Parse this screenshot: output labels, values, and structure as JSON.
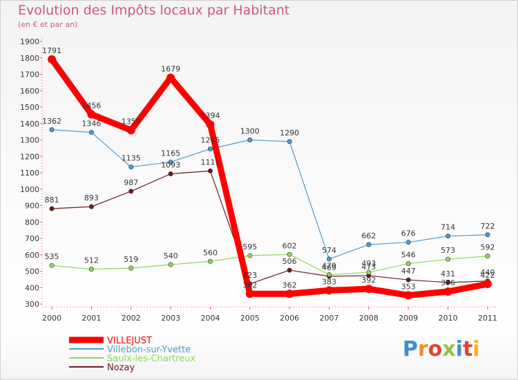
{
  "title": "Evolution des Impôts locaux par Habitant",
  "subtitle": "(en € et par an)",
  "logo": "Proxiti",
  "chart_data": {
    "type": "line",
    "title": "Evolution des Impôts locaux par Habitant",
    "subtitle": "(en € et par an)",
    "xlabel": "",
    "ylabel": "",
    "categories": [
      "2000",
      "2001",
      "2002",
      "2003",
      "2004",
      "2005",
      "2006",
      "2007",
      "2008",
      "2009",
      "2010",
      "2011"
    ],
    "ylim": [
      300,
      1900
    ],
    "yticks": [
      300,
      400,
      500,
      600,
      700,
      800,
      900,
      1000,
      1100,
      1200,
      1300,
      1400,
      1500,
      1600,
      1700,
      1800,
      1900
    ],
    "grid": false,
    "legend_position": "bottom-left",
    "series": [
      {
        "name": "VILLEJUST",
        "color": "#ff0000",
        "values": [
          1791,
          1456,
          1359,
          1679,
          1394,
          362,
          362,
          383,
          392,
          353,
          376,
          422
        ]
      },
      {
        "name": "Villebon-sur-Yvette",
        "color": "#4f9ad0",
        "values": [
          1362,
          1346,
          1135,
          1165,
          1245,
          1300,
          1290,
          574,
          662,
          676,
          714,
          722
        ]
      },
      {
        "name": "Saulx-les-Chartreux",
        "color": "#8dd65d",
        "values": [
          535,
          512,
          519,
          540,
          560,
          595,
          602,
          479,
          493,
          546,
          573,
          592
        ]
      },
      {
        "name": "Nozay",
        "color": "#6b1a1e",
        "values": [
          881,
          893,
          987,
          1093,
          1111,
          423,
          506,
          469,
          473,
          447,
          431,
          440
        ]
      }
    ]
  }
}
